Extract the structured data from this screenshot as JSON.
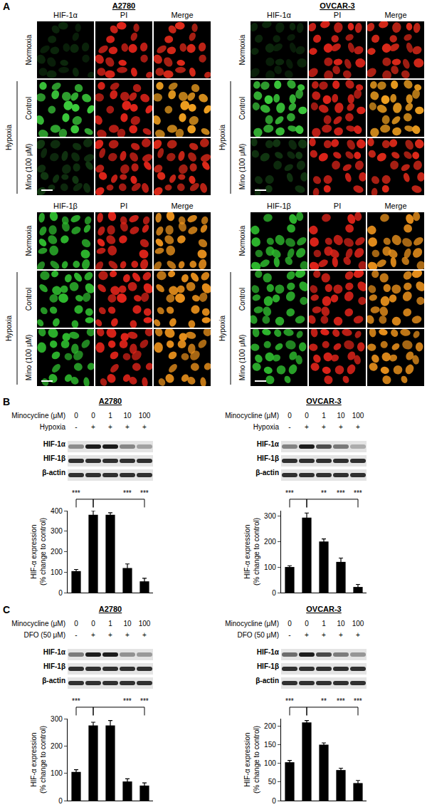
{
  "panel_labels": [
    "A",
    "B",
    "C"
  ],
  "panel_a": {
    "cell_lines": [
      "A2780",
      "OVCAR-3"
    ],
    "blocks": [
      {
        "columns": [
          "HIF-1α",
          "PI",
          "Merge"
        ]
      },
      {
        "columns": [
          "HIF-1β",
          "PI",
          "Merge"
        ]
      }
    ],
    "rows": [
      "Normoxia",
      "Control",
      "Mino (100 μM)"
    ],
    "group_label": "Hypoxia"
  },
  "chart_data": [
    {
      "type": "bar",
      "title": "A2780",
      "conditions": [
        {
          "label": "Minocycline (μM)",
          "values": [
            "0",
            "0",
            "1",
            "10",
            "100"
          ]
        },
        {
          "label": "Hypoxia",
          "values": [
            "-",
            "+",
            "+",
            "+",
            "+"
          ]
        }
      ],
      "blots": [
        "HIF-1α",
        "HIF-1β",
        "β-actin"
      ],
      "categories": [
        null,
        null,
        null,
        null,
        null
      ],
      "values": [
        105,
        380,
        380,
        120,
        55
      ],
      "errors": [
        8,
        20,
        10,
        20,
        15
      ],
      "significance": [
        "***",
        null,
        null,
        "***",
        "***"
      ],
      "color": "#000000",
      "y_label": "HIF-α expression\n(% change to control)",
      "ylim": [
        0,
        400
      ],
      "yticks": [
        0,
        100,
        200,
        300,
        400
      ],
      "tick_labels": "y",
      "grid": false
    },
    {
      "type": "bar",
      "title": "OVCAR-3",
      "conditions": [
        {
          "label": "Minocycline (μM)",
          "values": [
            "0",
            "0",
            "1",
            "10",
            "100"
          ]
        },
        {
          "label": "Hypoxia",
          "values": [
            "-",
            "+",
            "+",
            "+",
            "+"
          ]
        }
      ],
      "blots": [
        "HIF-1α",
        "HIF-1β",
        "β-actin"
      ],
      "categories": [
        null,
        null,
        null,
        null,
        null
      ],
      "values": [
        100,
        293,
        200,
        120,
        22
      ],
      "errors": [
        5,
        18,
        10,
        15,
        10
      ],
      "significance": [
        "***",
        null,
        "**",
        "***",
        "***"
      ],
      "color": "#000000",
      "y_label": "HIF-α expression\n(% change to control)",
      "ylim": [
        0,
        320
      ],
      "yticks": [
        0,
        100,
        200,
        300
      ],
      "tick_labels": "y",
      "grid": false
    },
    {
      "type": "bar",
      "title": "A2780",
      "conditions": [
        {
          "label": "Minocycline (μM)",
          "values": [
            "0",
            "0",
            "1",
            "10",
            "100"
          ]
        },
        {
          "label": "DFO (50 μM)",
          "values": [
            "-",
            "+",
            "+",
            "+",
            "+"
          ]
        }
      ],
      "blots": [
        "HIF-1α",
        "HIF-1β",
        "β-actin"
      ],
      "categories": [
        null,
        null,
        null,
        null,
        null
      ],
      "values": [
        105,
        275,
        275,
        70,
        55
      ],
      "errors": [
        8,
        12,
        18,
        10,
        10
      ],
      "significance": [
        "***",
        null,
        null,
        "***",
        "***"
      ],
      "color": "#000000",
      "y_label": "HIF-α expression\n(% change to control)",
      "ylim": [
        0,
        300
      ],
      "yticks": [
        0,
        100,
        200,
        300
      ],
      "tick_labels": "y",
      "grid": false
    },
    {
      "type": "bar",
      "title": "OVCAR-3",
      "conditions": [
        {
          "label": "Minocycline (μM)",
          "values": [
            "0",
            "0",
            "1",
            "10",
            "100"
          ]
        },
        {
          "label": "DFO (50 μM)",
          "values": [
            "-",
            "+",
            "+",
            "+",
            "+"
          ]
        }
      ],
      "blots": [
        "HIF-1α",
        "HIF-1β",
        "β-actin"
      ],
      "categories": [
        null,
        null,
        null,
        null,
        null
      ],
      "values": [
        103,
        210,
        150,
        82,
        47
      ],
      "errors": [
        5,
        5,
        5,
        5,
        7
      ],
      "significance": [
        "***",
        null,
        "**",
        "***",
        "***"
      ],
      "color": "#000000",
      "y_label": "HIF-α expression\n(% change to control)",
      "ylim": [
        0,
        220
      ],
      "yticks": [
        0,
        50,
        100,
        150,
        200
      ],
      "tick_labels": "y",
      "grid": false
    }
  ]
}
